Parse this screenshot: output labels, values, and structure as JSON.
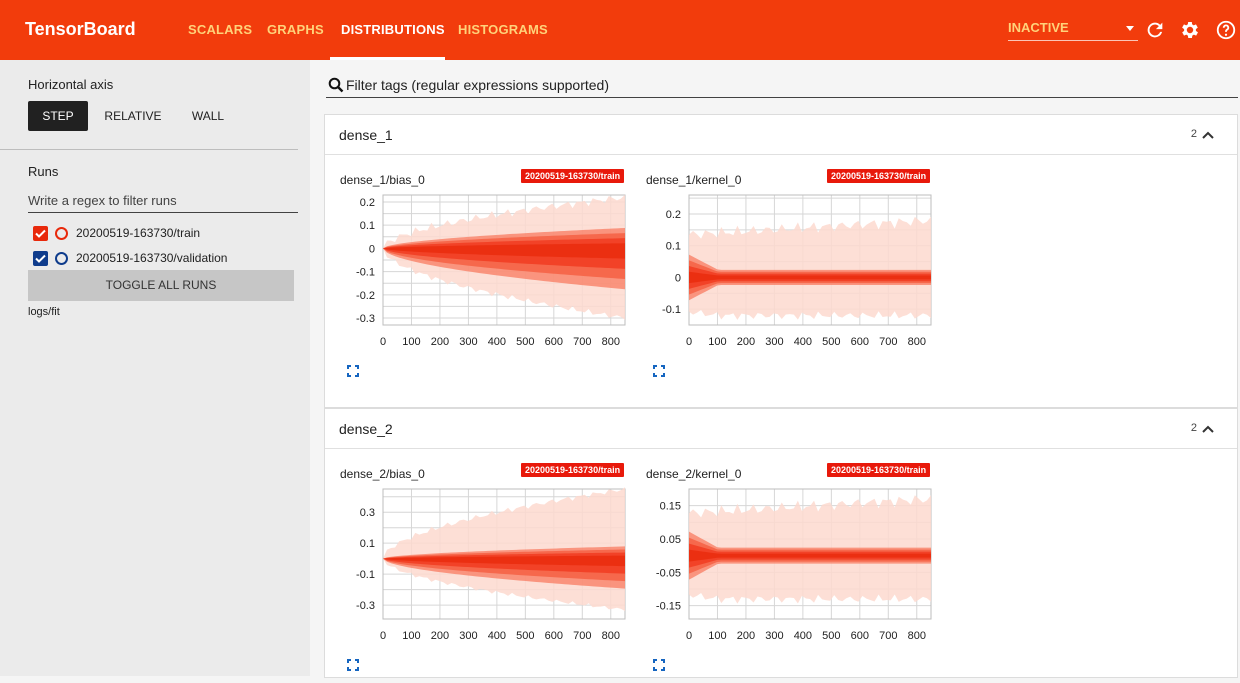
{
  "app": {
    "title": "TensorBoard"
  },
  "tabs": [
    {
      "label": "SCALARS"
    },
    {
      "label": "GRAPHS"
    },
    {
      "label": "DISTRIBUTIONS"
    },
    {
      "label": "HISTOGRAMS"
    }
  ],
  "status_select": {
    "value": "INACTIVE"
  },
  "sidebar": {
    "horizontal_axis_label": "Horizontal axis",
    "axis_options": [
      "STEP",
      "RELATIVE",
      "WALL"
    ],
    "axis_selected": "STEP",
    "runs_label": "Runs",
    "runs_filter_placeholder": "Write a regex to filter runs",
    "runs": [
      {
        "name": "20200519-163730/train",
        "checked": true,
        "color": "#e8290b"
      },
      {
        "name": "20200519-163730/validation",
        "checked": true,
        "color": "#0f3c8c"
      }
    ],
    "toggle_all_label": "TOGGLE ALL RUNS",
    "logdir": "logs/fit"
  },
  "filter": {
    "placeholder": "Filter tags (regular expressions supported)"
  },
  "groups": [
    {
      "name": "dense_1",
      "count": "2",
      "cards": [
        {
          "title": "dense_1/bias_0",
          "run_tag": "20200519-163730/train",
          "y_ticks": [
            "0.2",
            "0.1",
            "0",
            "-0.1",
            "-0.2",
            "-0.3"
          ],
          "x_ticks": [
            "0",
            "100",
            "200",
            "300",
            "400",
            "500",
            "600",
            "700",
            "800"
          ],
          "chart": {
            "kind": "bias",
            "ylim": [
              -0.33,
              0.23
            ],
            "outer_end": [
              -0.3,
              0.22
            ],
            "inner_end": [
              -0.2,
              0.1
            ]
          }
        },
        {
          "title": "dense_1/kernel_0",
          "run_tag": "20200519-163730/train",
          "y_ticks": [
            "0.2",
            "0.1",
            "0",
            "-0.1"
          ],
          "x_ticks": [
            "0",
            "100",
            "200",
            "300",
            "400",
            "500",
            "600",
            "700",
            "800"
          ],
          "chart": {
            "kind": "kernel",
            "ylim": [
              -0.15,
              0.26
            ],
            "outer_end": [
              -0.12,
              0.18
            ],
            "inner_end": [
              -0.03,
              0.03
            ]
          }
        }
      ]
    },
    {
      "name": "dense_2",
      "count": "2",
      "cards": [
        {
          "title": "dense_2/bias_0",
          "run_tag": "20200519-163730/train",
          "y_ticks": [
            "0.3",
            "0.1",
            "-0.1",
            "-0.3"
          ],
          "x_ticks": [
            "0",
            "100",
            "200",
            "300",
            "400",
            "500",
            "600",
            "700",
            "800"
          ],
          "chart": {
            "kind": "bias",
            "ylim": [
              -0.39,
              0.45
            ],
            "outer_end": [
              -0.33,
              0.45
            ],
            "inner_end": [
              -0.22,
              0.09
            ]
          }
        },
        {
          "title": "dense_2/kernel_0",
          "run_tag": "20200519-163730/train",
          "y_ticks": [
            "0.15",
            "0.05",
            "-0.05",
            "-0.15"
          ],
          "x_ticks": [
            "0",
            "100",
            "200",
            "300",
            "400",
            "500",
            "600",
            "700",
            "800"
          ],
          "chart": {
            "kind": "kernel",
            "ylim": [
              -0.19,
              0.2
            ],
            "outer_end": [
              -0.13,
              0.17
            ],
            "inner_end": [
              -0.03,
              0.03
            ]
          }
        }
      ]
    }
  ],
  "colors": {
    "accent": "#f23c0c",
    "dist_dark": "#f0361b",
    "dist_light": "#fdd9cf"
  }
}
